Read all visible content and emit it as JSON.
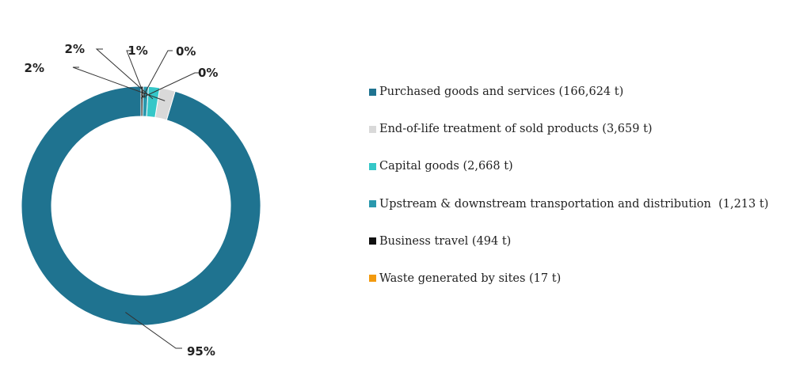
{
  "chart_data": {
    "type": "pie",
    "donut": true,
    "title": "",
    "legend_position": "right",
    "slices": [
      {
        "label": "Purchased goods and services (166,624 t)",
        "value": 166624,
        "percent_label": "95%",
        "color": "#1f7390"
      },
      {
        "label": "End-of-life treatment of sold products (3,659 t)",
        "value": 3659,
        "percent_label": "2%",
        "color": "#d9d9d9"
      },
      {
        "label": "Capital goods (2,668 t)",
        "value": 2668,
        "percent_label": "2%",
        "color": "#35c7c8"
      },
      {
        "label": "Upstream & downstream transportation and distribution  (1,213 t)",
        "value": 1213,
        "percent_label": "1%",
        "color": "#2a98ad"
      },
      {
        "label": "Business travel (494 t)",
        "value": 494,
        "percent_label": "0%",
        "color": "#111111"
      },
      {
        "label": "Waste generated by sites (17 t)",
        "value": 17,
        "percent_label": "0%",
        "color": "#f29a0f"
      }
    ]
  }
}
